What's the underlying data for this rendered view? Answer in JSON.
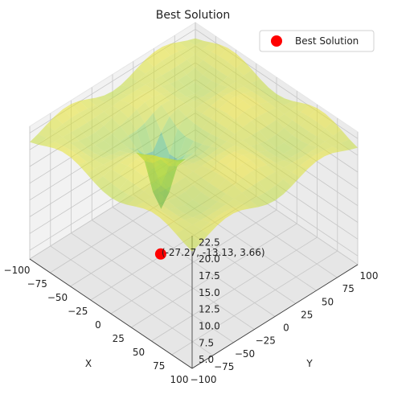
{
  "chart_data": {
    "type": "surface3d",
    "title": "Best Solution",
    "xlabel": "X",
    "ylabel": "Y",
    "zlabel": "",
    "xlim": [
      -100,
      100
    ],
    "ylim": [
      -100,
      100
    ],
    "zlim": [
      3.7,
      23.5
    ],
    "x_ticks": [
      "−100",
      "−75",
      "−50",
      "−25",
      "0",
      "25",
      "50",
      "75",
      "100"
    ],
    "y_ticks": [
      "−100",
      "−75",
      "−50",
      "−25",
      "0",
      "25",
      "50",
      "75",
      "100"
    ],
    "z_ticks": [
      "5.0",
      "7.5",
      "10.0",
      "12.5",
      "15.0",
      "17.5",
      "20.0",
      "22.5"
    ],
    "x_tick_values": [
      -100,
      -75,
      -50,
      -25,
      0,
      25,
      50,
      75,
      100
    ],
    "y_tick_values": [
      -100,
      -75,
      -50,
      -25,
      0,
      25,
      50,
      75,
      100
    ],
    "z_tick_values": [
      5,
      7.5,
      10,
      12.5,
      15,
      17.5,
      20,
      22.5
    ],
    "colormap": "viridis",
    "grid": true,
    "legend_position": "top-right",
    "legend_label": "Best Solution",
    "marker_color": "#ff0000",
    "best_point": {
      "x": -27.27,
      "y": -13.13,
      "z": 3.66
    },
    "best_point_label": "(-27.27, -13.13, 3.66)"
  }
}
